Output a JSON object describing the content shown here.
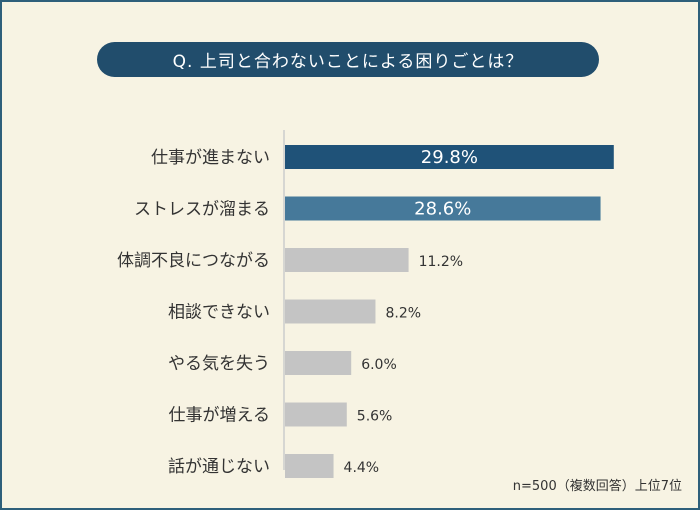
{
  "chart_data": {
    "type": "bar",
    "orientation": "horizontal",
    "title": "Q. 上司と合わないことによる困りごとは？",
    "categories": [
      "仕事が進まない",
      "ストレスが溜まる",
      "体調不良につながる",
      "相談できない",
      "やる気を失う",
      "仕事が増える",
      "話が通じない"
    ],
    "values": [
      29.8,
      28.6,
      11.2,
      8.2,
      6.0,
      5.6,
      4.4
    ],
    "value_labels": [
      "29.8%",
      "28.6%",
      "11.2%",
      "8.2%",
      "6.0%",
      "5.6%",
      "4.4%"
    ],
    "bar_colors": [
      "#1f5278",
      "#46799a",
      "#c4c4c4",
      "#c4c4c4",
      "#c4c4c4",
      "#c4c4c4",
      "#c4c4c4"
    ],
    "label_inside": [
      true,
      true,
      false,
      false,
      false,
      false,
      false
    ],
    "xlim": [
      0,
      30
    ],
    "grid": false,
    "note": "n=500（複数回答）上位7位"
  },
  "colors": {
    "background": "#f7f3e3",
    "border": "#2e5f7a",
    "title_bg": "#214d6c",
    "axis": "#cccccc",
    "text": "#333333"
  }
}
